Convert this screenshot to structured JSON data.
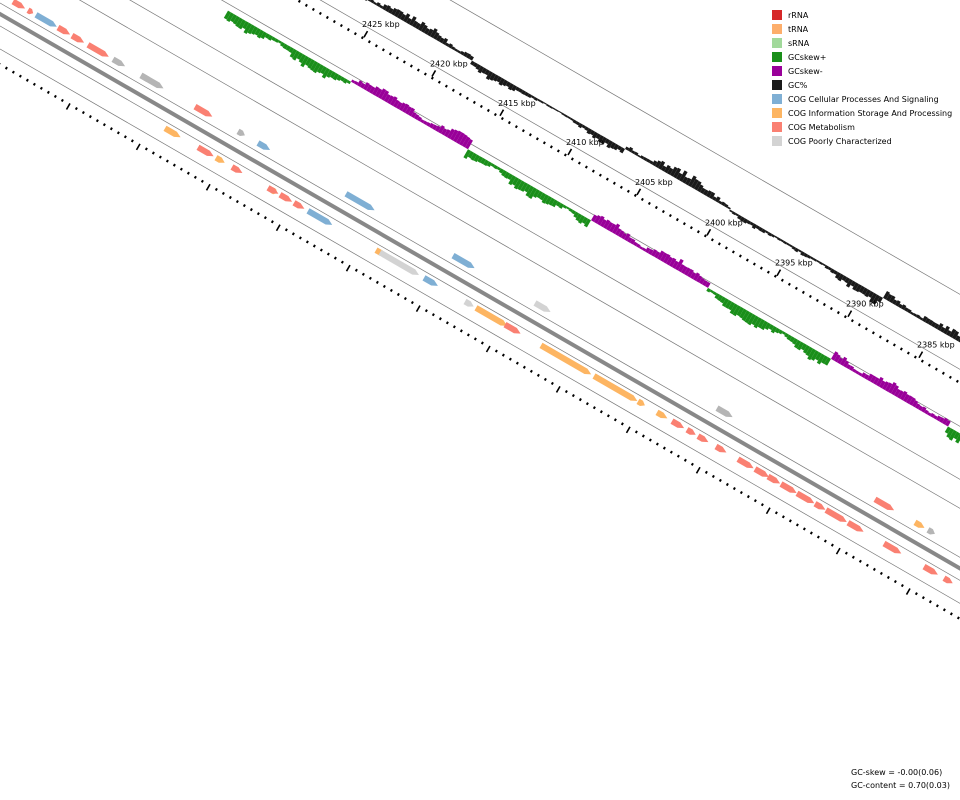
{
  "legend": {
    "items": [
      {
        "label": "rRNA",
        "color": "#d62728"
      },
      {
        "label": "tRNA",
        "color": "#fdae6b"
      },
      {
        "label": "sRNA",
        "color": "#a1d99b"
      },
      {
        "label": "GCskew+",
        "color": "#1a8f1a"
      },
      {
        "label": "GCskew-",
        "color": "#990099"
      },
      {
        "label": "GC%",
        "color": "#1a1a1a"
      },
      {
        "label": "COG Cellular Processes And Signaling",
        "color": "#7fafd4"
      },
      {
        "label": "COG Information Storage And Processing",
        "color": "#fdb562"
      },
      {
        "label": "COG Metabolism",
        "color": "#fa8072"
      },
      {
        "label": "COG Poorly Characterized",
        "color": "#d3d3d3"
      }
    ]
  },
  "stats": {
    "gc_skew": "GC-skew = -0.00(0.06)",
    "gc_content": "GC-content = 0.70(0.03)"
  },
  "scale": {
    "labels": [
      "2425 kbp",
      "2420 kbp",
      "2415 kbp",
      "2410 kbp",
      "2405 kbp",
      "2400 kbp",
      "2395 kbp",
      "2390 kbp",
      "2385 kbp"
    ]
  },
  "colors": {
    "backbone": "#888888",
    "guide": "#777777",
    "poorly_dark": "#b5b5b5"
  }
}
